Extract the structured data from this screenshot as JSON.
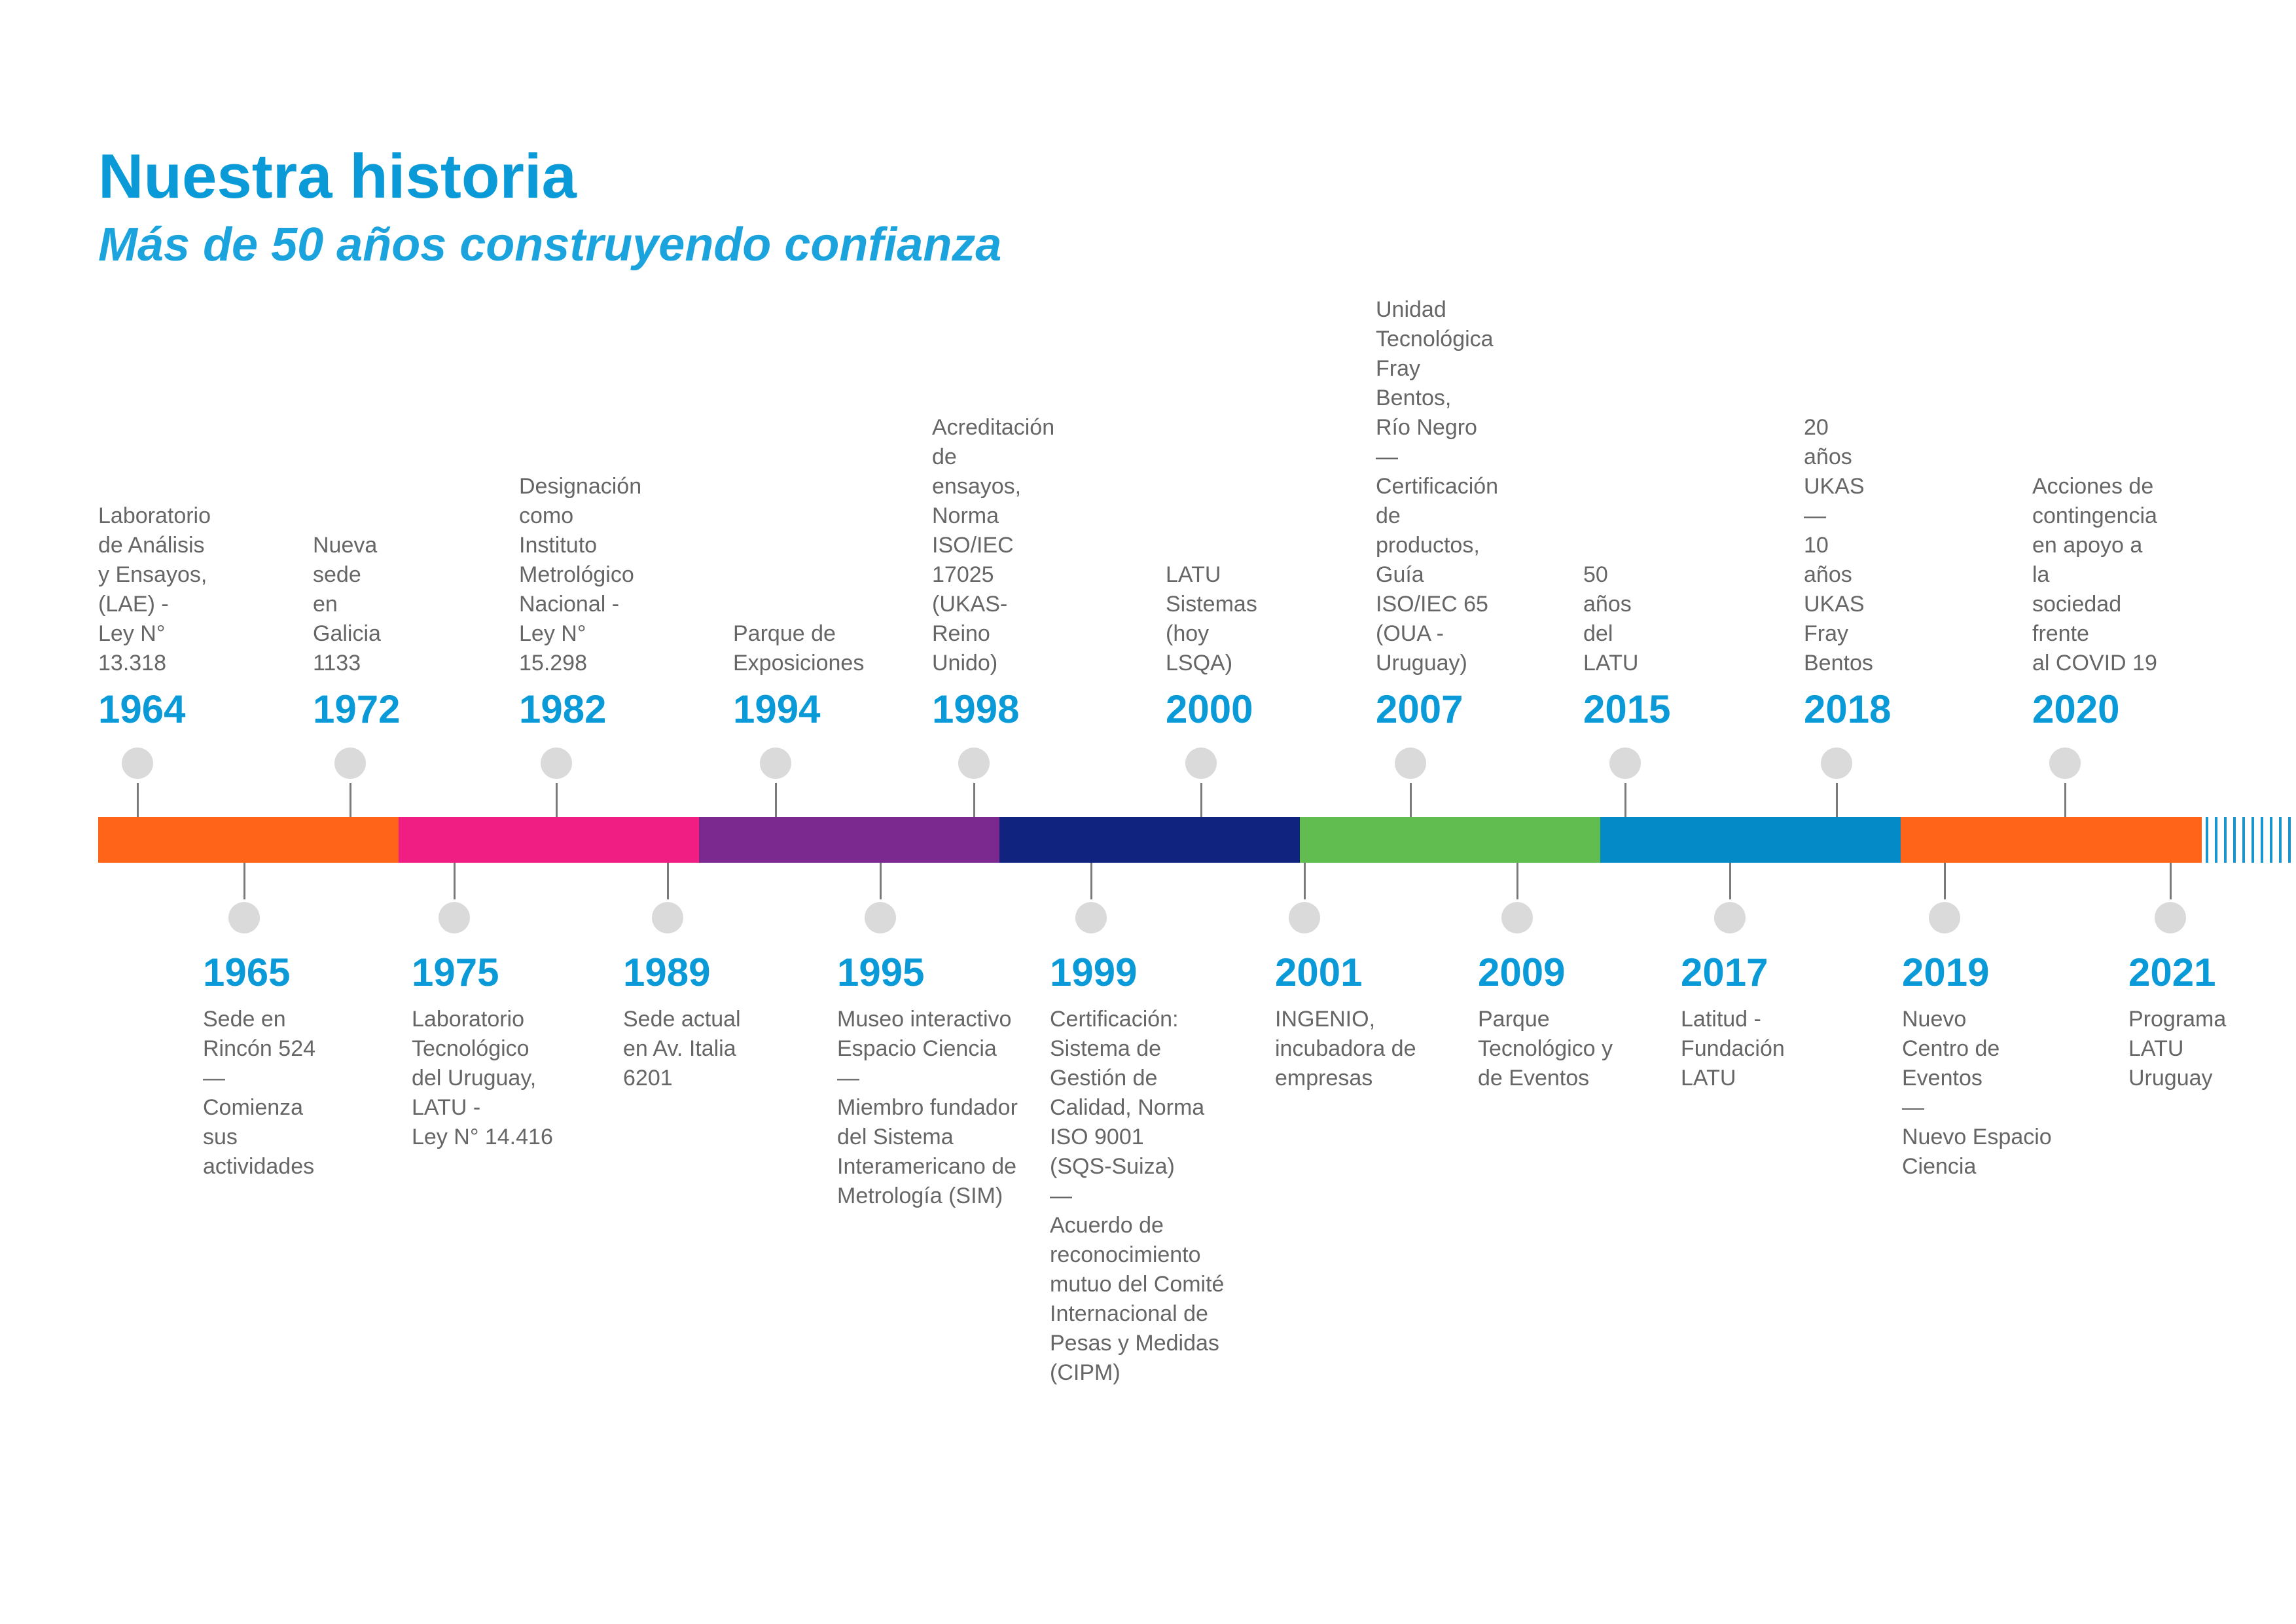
{
  "header": {
    "title": "Nuestra historia",
    "subtitle": "Más de 50 años construyendo confianza"
  },
  "bar_segments": [
    {
      "color": "#ff6418",
      "fraction": 0.1428
    },
    {
      "color": "#f01e82",
      "fraction": 0.1428
    },
    {
      "color": "#7b298e",
      "fraction": 0.1428
    },
    {
      "color": "#10237f",
      "fraction": 0.1428
    },
    {
      "color": "#61bd4f",
      "fraction": 0.1428
    },
    {
      "color": "#048ac6",
      "fraction": 0.1428
    },
    {
      "color": "#ff6418",
      "fraction": 0.1432
    }
  ],
  "timeline": {
    "top": [
      {
        "year": "1964",
        "text": "Laboratorio\nde Análisis\ny Ensayos, (LAE) -\nLey N° 13.318"
      },
      {
        "year": "1972",
        "text": "Nueva sede\nen Galicia 1133"
      },
      {
        "year": "1982",
        "text": "Designación\ncomo Instituto\nMetrológico\nNacional -\nLey N° 15.298"
      },
      {
        "year": "1994",
        "text": "Parque de\nExposiciones"
      },
      {
        "year": "1998",
        "text": "Acreditación de\nensayos, Norma\nISO/IEC 17025\n(UKAS-Reino\nUnido)"
      },
      {
        "year": "2000",
        "text": "LATU Sistemas\n(hoy LSQA)"
      },
      {
        "year": "2007",
        "text": "Unidad\nTecnológica\nFray Bentos,\nRío Negro\n—\nCertificación de\nproductos, Guía\nISO/IEC 65\n(OUA - Uruguay)"
      },
      {
        "year": "2015",
        "text": "50 años\ndel LATU"
      },
      {
        "year": "2018",
        "text": "20 años UKAS\n—\n10 años UKAS\nFray Bentos"
      },
      {
        "year": "2020",
        "text": "Acciones de\ncontingencia\nen apoyo a la\nsociedad frente\nal COVID 19"
      }
    ],
    "bottom": [
      {
        "year": "1965",
        "text": "Sede en\nRincón 524\n—\nComienza\nsus\nactividades"
      },
      {
        "year": "1975",
        "text": "Laboratorio\nTecnológico\ndel Uruguay,\nLATU -\nLey N° 14.416"
      },
      {
        "year": "1989",
        "text": "Sede actual\nen Av. Italia\n6201"
      },
      {
        "year": "1995",
        "text": "Museo interactivo\nEspacio Ciencia\n—\nMiembro fundador\ndel Sistema\nInteramericano de\nMetrología (SIM)"
      },
      {
        "year": "1999",
        "text": "Certificación:\nSistema de\nGestión de\nCalidad, Norma\nISO 9001\n(SQS-Suiza)\n—\nAcuerdo de\nreconocimiento\nmutuo del Comité\nInternacional de\nPesas y Medidas\n(CIPM)"
      },
      {
        "year": "2001",
        "text": "INGENIO,\nincubadora de\nempresas"
      },
      {
        "year": "2009",
        "text": "Parque\nTecnológico y\nde Eventos"
      },
      {
        "year": "2017",
        "text": "Latitud -\nFundación\nLATU"
      },
      {
        "year": "2019",
        "text": "Nuevo\nCentro de\nEventos\n—\nNuevo Espacio\nCiencia"
      },
      {
        "year": "2021",
        "text": "Programa\nLATU\nUruguay"
      }
    ]
  }
}
